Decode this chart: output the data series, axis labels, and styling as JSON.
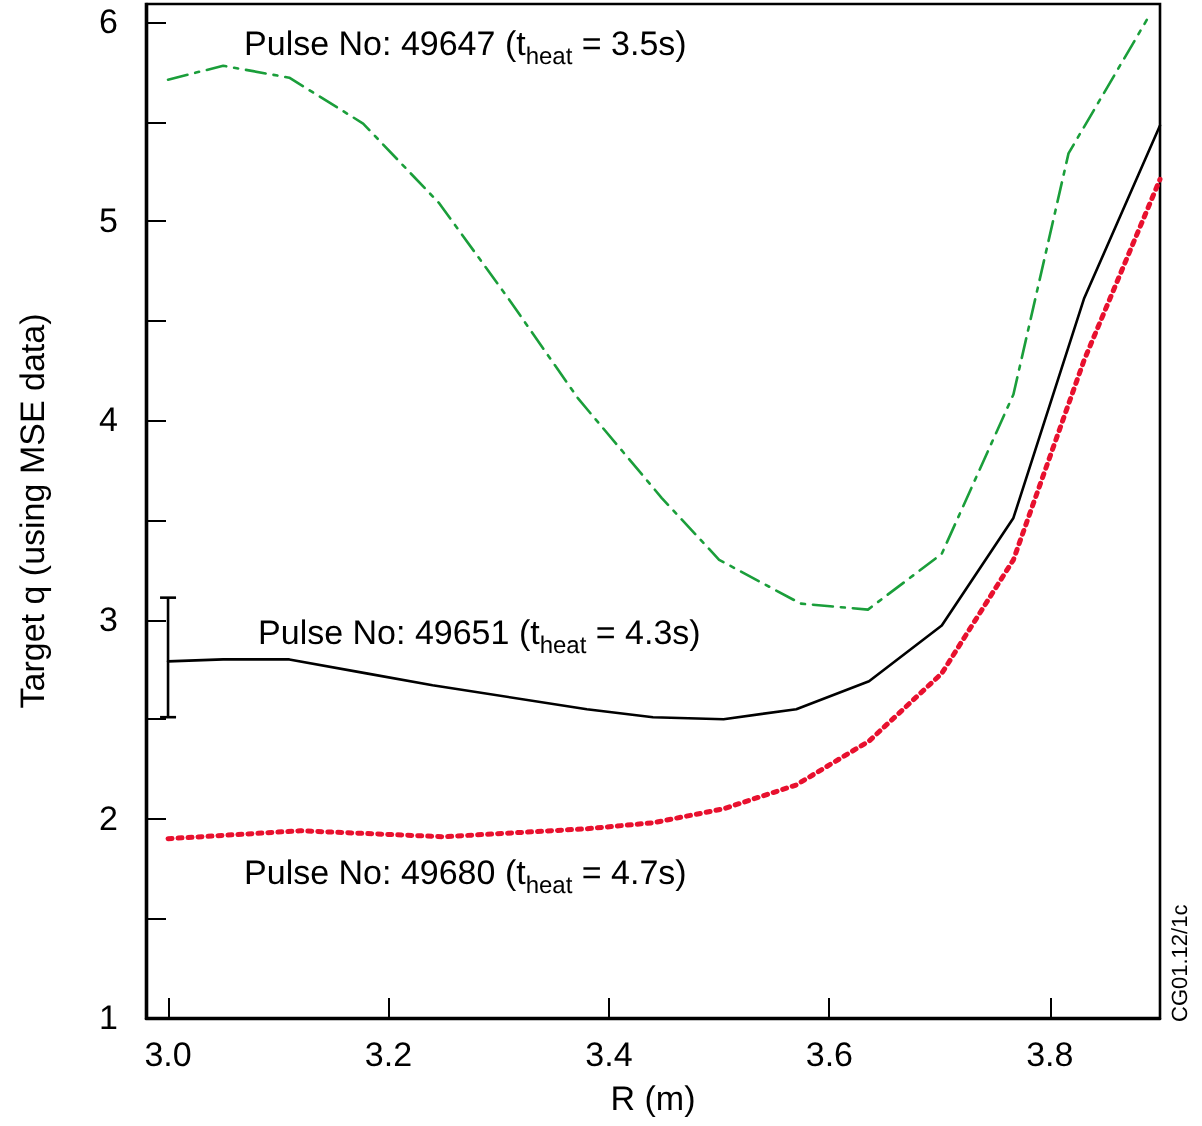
{
  "chart_data": {
    "type": "line",
    "xlabel": "R (m)",
    "ylabel": "Target q (using MSE data)",
    "xlim": [
      2.98,
      3.9
    ],
    "ylim": [
      1,
      6.09
    ],
    "xticks": [
      {
        "value": 3,
        "label": "3.0"
      },
      {
        "value": 3.2,
        "label": "3.2"
      },
      {
        "value": 3.4,
        "label": "3.4"
      },
      {
        "value": 3.6,
        "label": "3.6"
      },
      {
        "value": 3.8,
        "label": "3.8"
      }
    ],
    "yticks": [
      1,
      {
        "value": 1.5,
        "label": null
      },
      2,
      {
        "value": 2.5,
        "label": null
      },
      3,
      {
        "value": 3.5,
        "label": null
      },
      4,
      {
        "value": 4.5,
        "label": null
      },
      5,
      {
        "value": 5.5,
        "label": null
      },
      6
    ],
    "grid": false,
    "marker": "none",
    "series": [
      {
        "name": "Pulse No: 49647 (t$_{heat}$ = 3.5s)",
        "color": "#1a9e3a",
        "line_style": "dashdot",
        "x": [
          3.0,
          3.05,
          3.11,
          3.177,
          3.246,
          3.309,
          3.372,
          3.448,
          3.5,
          3.574,
          3.635,
          3.702,
          3.767,
          3.817,
          3.888
        ],
        "values": [
          5.71,
          5.78,
          5.72,
          5.49,
          5.09,
          4.61,
          4.11,
          3.61,
          3.3,
          3.08,
          3.05,
          3.33,
          4.13,
          5.34,
          6.01
        ]
      },
      {
        "name": "Pulse No: 49651 (t$_{heat}$ = 4.3s)",
        "color": "#000000",
        "line_style": "solid",
        "x": [
          3.0,
          3.05,
          3.11,
          3.18,
          3.24,
          3.38,
          3.44,
          3.504,
          3.57,
          3.636,
          3.702,
          3.767,
          3.831,
          3.9
        ],
        "values": [
          2.79,
          2.8,
          2.8,
          2.73,
          2.67,
          2.55,
          2.51,
          2.5,
          2.55,
          2.69,
          2.97,
          3.51,
          4.61,
          5.48
        ],
        "errors": [
          [
            2.51,
            3.11
          ],
          null,
          null,
          null,
          null,
          null,
          null,
          null,
          null,
          null,
          null,
          null,
          null,
          null
        ]
      },
      {
        "name": "Pulse No: 49680 (t$_{heat}$ = 4.7s)",
        "color": "#e8102e",
        "line_style": "dotted",
        "x": [
          3.0,
          3.12,
          3.25,
          3.38,
          3.44,
          3.504,
          3.57,
          3.636,
          3.702,
          3.767,
          3.831,
          3.9
        ],
        "values": [
          1.9,
          1.94,
          1.91,
          1.95,
          1.98,
          2.05,
          2.17,
          2.39,
          2.73,
          3.3,
          4.3,
          5.21
        ]
      }
    ],
    "annotations": [
      "CG01.12/1c"
    ]
  }
}
